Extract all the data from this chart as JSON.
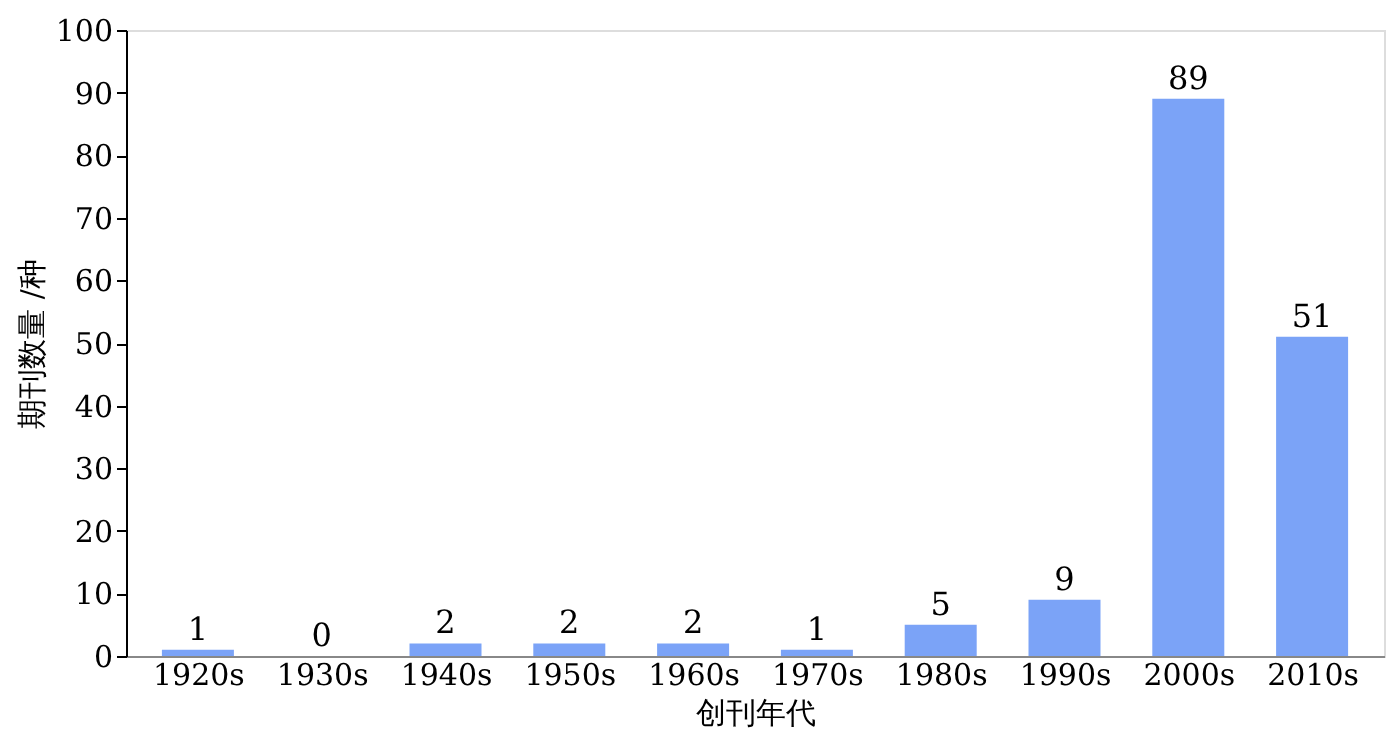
{
  "chart_data": {
    "type": "bar",
    "xlabel": "创刊年代",
    "ylabel": "期刊数量 /种",
    "categories": [
      "1920s",
      "1930s",
      "1940s",
      "1950s",
      "1960s",
      "1970s",
      "1980s",
      "1990s",
      "2000s",
      "2010s"
    ],
    "values": [
      1,
      0,
      2,
      2,
      2,
      1,
      5,
      9,
      89,
      51
    ],
    "color": "#7ba3f7",
    "ylim": [
      0,
      100
    ],
    "yticks": [
      0,
      10,
      20,
      30,
      40,
      50,
      60,
      70,
      80,
      90,
      100
    ],
    "grid": false,
    "data_labels": true
  }
}
